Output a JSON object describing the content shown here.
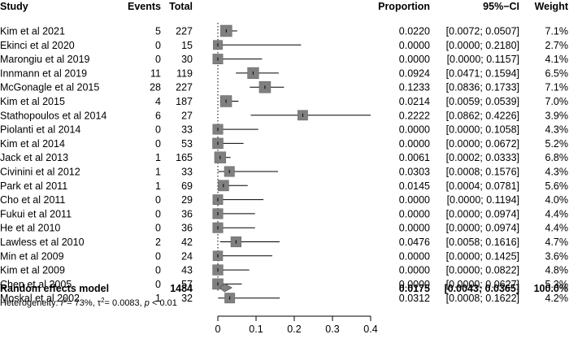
{
  "chart_data": {
    "type": "forest",
    "headers": {
      "study": "Study",
      "events": "Events",
      "total": "Total",
      "proportion": "Proportion",
      "ci": "95%−CI",
      "weight": "Weight"
    },
    "studies": [
      {
        "study": "Kim et al 2021",
        "events": 5,
        "total": 227,
        "proportion": 0.022,
        "lower": 0.0072,
        "upper": 0.0507,
        "prop_text": "0.0220",
        "ci_text": "[0.0072; 0.0507]",
        "weight": 7.1,
        "weight_text": "7.1%"
      },
      {
        "study": "Ekinci et al 2020",
        "events": 0,
        "total": 15,
        "proportion": 0.0,
        "lower": 0.0,
        "upper": 0.218,
        "prop_text": "0.0000",
        "ci_text": "[0.0000; 0.2180]",
        "weight": 2.7,
        "weight_text": "2.7%"
      },
      {
        "study": "Marongiu et al 2019",
        "events": 0,
        "total": 30,
        "proportion": 0.0,
        "lower": 0.0,
        "upper": 0.1157,
        "prop_text": "0.0000",
        "ci_text": "[0.0000; 0.1157]",
        "weight": 4.1,
        "weight_text": "4.1%"
      },
      {
        "study": "Innmann et al 2019",
        "events": 11,
        "total": 119,
        "proportion": 0.0924,
        "lower": 0.0471,
        "upper": 0.1594,
        "prop_text": "0.0924",
        "ci_text": "[0.0471; 0.1594]",
        "weight": 6.5,
        "weight_text": "6.5%"
      },
      {
        "study": "McGonagle et al 2015",
        "events": 28,
        "total": 227,
        "proportion": 0.1233,
        "lower": 0.0836,
        "upper": 0.1733,
        "prop_text": "0.1233",
        "ci_text": "[0.0836; 0.1733]",
        "weight": 7.1,
        "weight_text": "7.1%"
      },
      {
        "study": "Kim et al 2015",
        "events": 4,
        "total": 187,
        "proportion": 0.0214,
        "lower": 0.0059,
        "upper": 0.0539,
        "prop_text": "0.0214",
        "ci_text": "[0.0059; 0.0539]",
        "weight": 7.0,
        "weight_text": "7.0%"
      },
      {
        "study": "Stathopoulos et al 2014",
        "events": 6,
        "total": 27,
        "proportion": 0.2222,
        "lower": 0.0862,
        "upper": 0.4226,
        "prop_text": "0.2222",
        "ci_text": "[0.0862; 0.4226]",
        "weight": 3.9,
        "weight_text": "3.9%"
      },
      {
        "study": "Piolanti et al 2014",
        "events": 0,
        "total": 33,
        "proportion": 0.0,
        "lower": 0.0,
        "upper": 0.1058,
        "prop_text": "0.0000",
        "ci_text": "[0.0000; 0.1058]",
        "weight": 4.3,
        "weight_text": "4.3%"
      },
      {
        "study": "Kim et al 2014",
        "events": 0,
        "total": 53,
        "proportion": 0.0,
        "lower": 0.0,
        "upper": 0.0672,
        "prop_text": "0.0000",
        "ci_text": "[0.0000; 0.0672]",
        "weight": 5.2,
        "weight_text": "5.2%"
      },
      {
        "study": "Jack et al 2013",
        "events": 1,
        "total": 165,
        "proportion": 0.0061,
        "lower": 0.0002,
        "upper": 0.0333,
        "prop_text": "0.0061",
        "ci_text": "[0.0002; 0.0333]",
        "weight": 6.8,
        "weight_text": "6.8%"
      },
      {
        "study": "Civinini et al 2012",
        "events": 1,
        "total": 33,
        "proportion": 0.0303,
        "lower": 0.0008,
        "upper": 0.1576,
        "prop_text": "0.0303",
        "ci_text": "[0.0008; 0.1576]",
        "weight": 4.3,
        "weight_text": "4.3%"
      },
      {
        "study": "Park et al 2011",
        "events": 1,
        "total": 69,
        "proportion": 0.0145,
        "lower": 0.0004,
        "upper": 0.0781,
        "prop_text": "0.0145",
        "ci_text": "[0.0004; 0.0781]",
        "weight": 5.6,
        "weight_text": "5.6%"
      },
      {
        "study": "Cho et al 2011",
        "events": 0,
        "total": 29,
        "proportion": 0.0,
        "lower": 0.0,
        "upper": 0.1194,
        "prop_text": "0.0000",
        "ci_text": "[0.0000; 0.1194]",
        "weight": 4.0,
        "weight_text": "4.0%"
      },
      {
        "study": "Fukui et al 2011",
        "events": 0,
        "total": 36,
        "proportion": 0.0,
        "lower": 0.0,
        "upper": 0.0974,
        "prop_text": "0.0000",
        "ci_text": "[0.0000; 0.0974]",
        "weight": 4.4,
        "weight_text": "4.4%"
      },
      {
        "study": "He et al 2010",
        "events": 0,
        "total": 36,
        "proportion": 0.0,
        "lower": 0.0,
        "upper": 0.0974,
        "prop_text": "0.0000",
        "ci_text": "[0.0000; 0.0974]",
        "weight": 4.4,
        "weight_text": "4.4%"
      },
      {
        "study": "Lawless et al 2010",
        "events": 2,
        "total": 42,
        "proportion": 0.0476,
        "lower": 0.0058,
        "upper": 0.1616,
        "prop_text": "0.0476",
        "ci_text": "[0.0058; 0.1616]",
        "weight": 4.7,
        "weight_text": "4.7%"
      },
      {
        "study": "Min et al 2009",
        "events": 0,
        "total": 24,
        "proportion": 0.0,
        "lower": 0.0,
        "upper": 0.1425,
        "prop_text": "0.0000",
        "ci_text": "[0.0000; 0.1425]",
        "weight": 3.6,
        "weight_text": "3.6%"
      },
      {
        "study": "Kim et al 2009",
        "events": 0,
        "total": 43,
        "proportion": 0.0,
        "lower": 0.0,
        "upper": 0.0822,
        "prop_text": "0.0000",
        "ci_text": "[0.0000; 0.0822]",
        "weight": 4.8,
        "weight_text": "4.8%"
      },
      {
        "study": "Chen et al 2005",
        "events": 0,
        "total": 57,
        "proportion": 0.0,
        "lower": 0.0,
        "upper": 0.0627,
        "prop_text": "0.0000",
        "ci_text": "[0.0000; 0.0627]",
        "weight": 5.3,
        "weight_text": "5.3%"
      },
      {
        "study": "Moskal et al 2002",
        "events": 1,
        "total": 32,
        "proportion": 0.0312,
        "lower": 0.0008,
        "upper": 0.1622,
        "prop_text": "0.0312",
        "ci_text": "[0.0008; 0.1622]",
        "weight": 4.2,
        "weight_text": "4.2%"
      }
    ],
    "pooled": {
      "label": "Random effects model",
      "total": 1484,
      "proportion": 0.0175,
      "lower": 0.0043,
      "upper": 0.0365,
      "prop_text": "0.0175",
      "ci_text": "[0.0043; 0.0365]",
      "weight_text": "100.0%"
    },
    "heterogeneity": {
      "prefix": "Heterogeneity: ",
      "i2_symbol": "I",
      "i2_value": "= 73%, ",
      "tau2_symbol": "τ",
      "tau2_value": "= 0.0083, ",
      "p_symbol": "p",
      "p_value": " < 0.01"
    },
    "x_axis": {
      "ticks": [
        0,
        0.1,
        0.2,
        0.3,
        0.4
      ],
      "tick_labels": [
        "0",
        "0.1",
        "0.2",
        "0.3",
        "0.4"
      ],
      "xlim": [
        0,
        0.4
      ]
    },
    "colors": {
      "box": "#808080",
      "box_stroke": "#606060",
      "line": "#000000",
      "pooled_line": "#808080"
    }
  }
}
